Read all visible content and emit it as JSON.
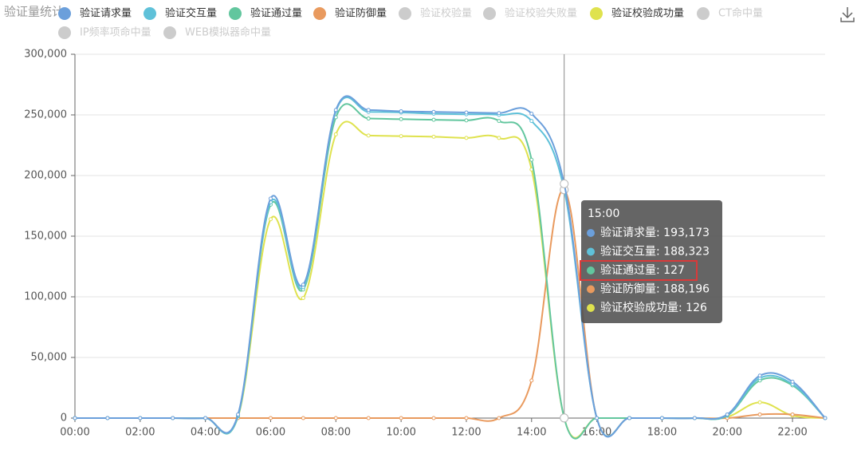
{
  "chart_data": {
    "type": "line",
    "title": "验证量统计",
    "categories": [
      "00:00",
      null,
      "02:00",
      null,
      "04:00",
      null,
      "06:00",
      null,
      "08:00",
      null,
      "10:00",
      null,
      "12:00",
      null,
      "14:00",
      null,
      "16:00",
      null,
      "18:00",
      null,
      "20:00",
      null,
      "22:00",
      null
    ],
    "series": [
      {
        "name": "验证请求量",
        "color": "#6b9fdb",
        "values": [
          0,
          0,
          0,
          0,
          0,
          3000,
          181000,
          110000,
          254000,
          254000,
          253000,
          252500,
          252000,
          251500,
          251000,
          193173,
          0,
          0,
          0,
          0,
          3000,
          35000,
          30000,
          0
        ]
      },
      {
        "name": "验证交互量",
        "color": "#5fc1d9",
        "values": [
          0,
          0,
          0,
          0,
          0,
          2000,
          178000,
          108000,
          253000,
          252500,
          252000,
          251000,
          250500,
          250000,
          245000,
          188323,
          0,
          0,
          0,
          0,
          2500,
          33000,
          28000,
          0
        ]
      },
      {
        "name": "验证通过量",
        "color": "#62c69e",
        "values": [
          0,
          0,
          0,
          0,
          0,
          1500,
          176000,
          106000,
          248000,
          247000,
          246500,
          246000,
          245500,
          245000,
          213000,
          127,
          0,
          0,
          0,
          0,
          2000,
          31000,
          27000,
          0
        ]
      },
      {
        "name": "验证防御量",
        "color": "#e99a5e",
        "values": [
          0,
          0,
          0,
          0,
          0,
          0,
          0,
          0,
          0,
          0,
          0,
          0,
          0,
          0,
          31000,
          188196,
          0,
          0,
          0,
          0,
          0,
          3000,
          3000,
          0
        ]
      },
      {
        "name": "验证校验成功量",
        "color": "#dfe24e",
        "values": [
          0,
          0,
          0,
          0,
          0,
          1000,
          164000,
          99000,
          234000,
          233000,
          232500,
          232000,
          231000,
          231000,
          205000,
          126,
          0,
          0,
          0,
          0,
          1000,
          13000,
          2000,
          0
        ]
      }
    ],
    "legend_disabled": [
      "验证校验量",
      "验证校验失败量",
      "CT命中量",
      "IP频率项命中量",
      "WEB模拟器命中量"
    ],
    "ylim": [
      0,
      300000
    ],
    "yticks": [
      0,
      {
        "value": 50000,
        "label": "50,000"
      },
      {
        "value": 100000,
        "label": "100,000"
      },
      {
        "value": 150000,
        "label": "150,000"
      },
      {
        "value": 200000,
        "label": "200,000"
      },
      {
        "value": 250000,
        "label": "250,000"
      },
      {
        "value": 300000,
        "label": "300,000"
      }
    ],
    "grid": true,
    "tooltip": {
      "index": 15,
      "title": "15:00",
      "highlight": 2,
      "items": [
        "验证请求量: 193,173",
        "验证交互量: 188,323",
        "验证通过量: 127",
        "验证防御量: 188,196",
        "验证校验成功量: 126"
      ]
    }
  }
}
